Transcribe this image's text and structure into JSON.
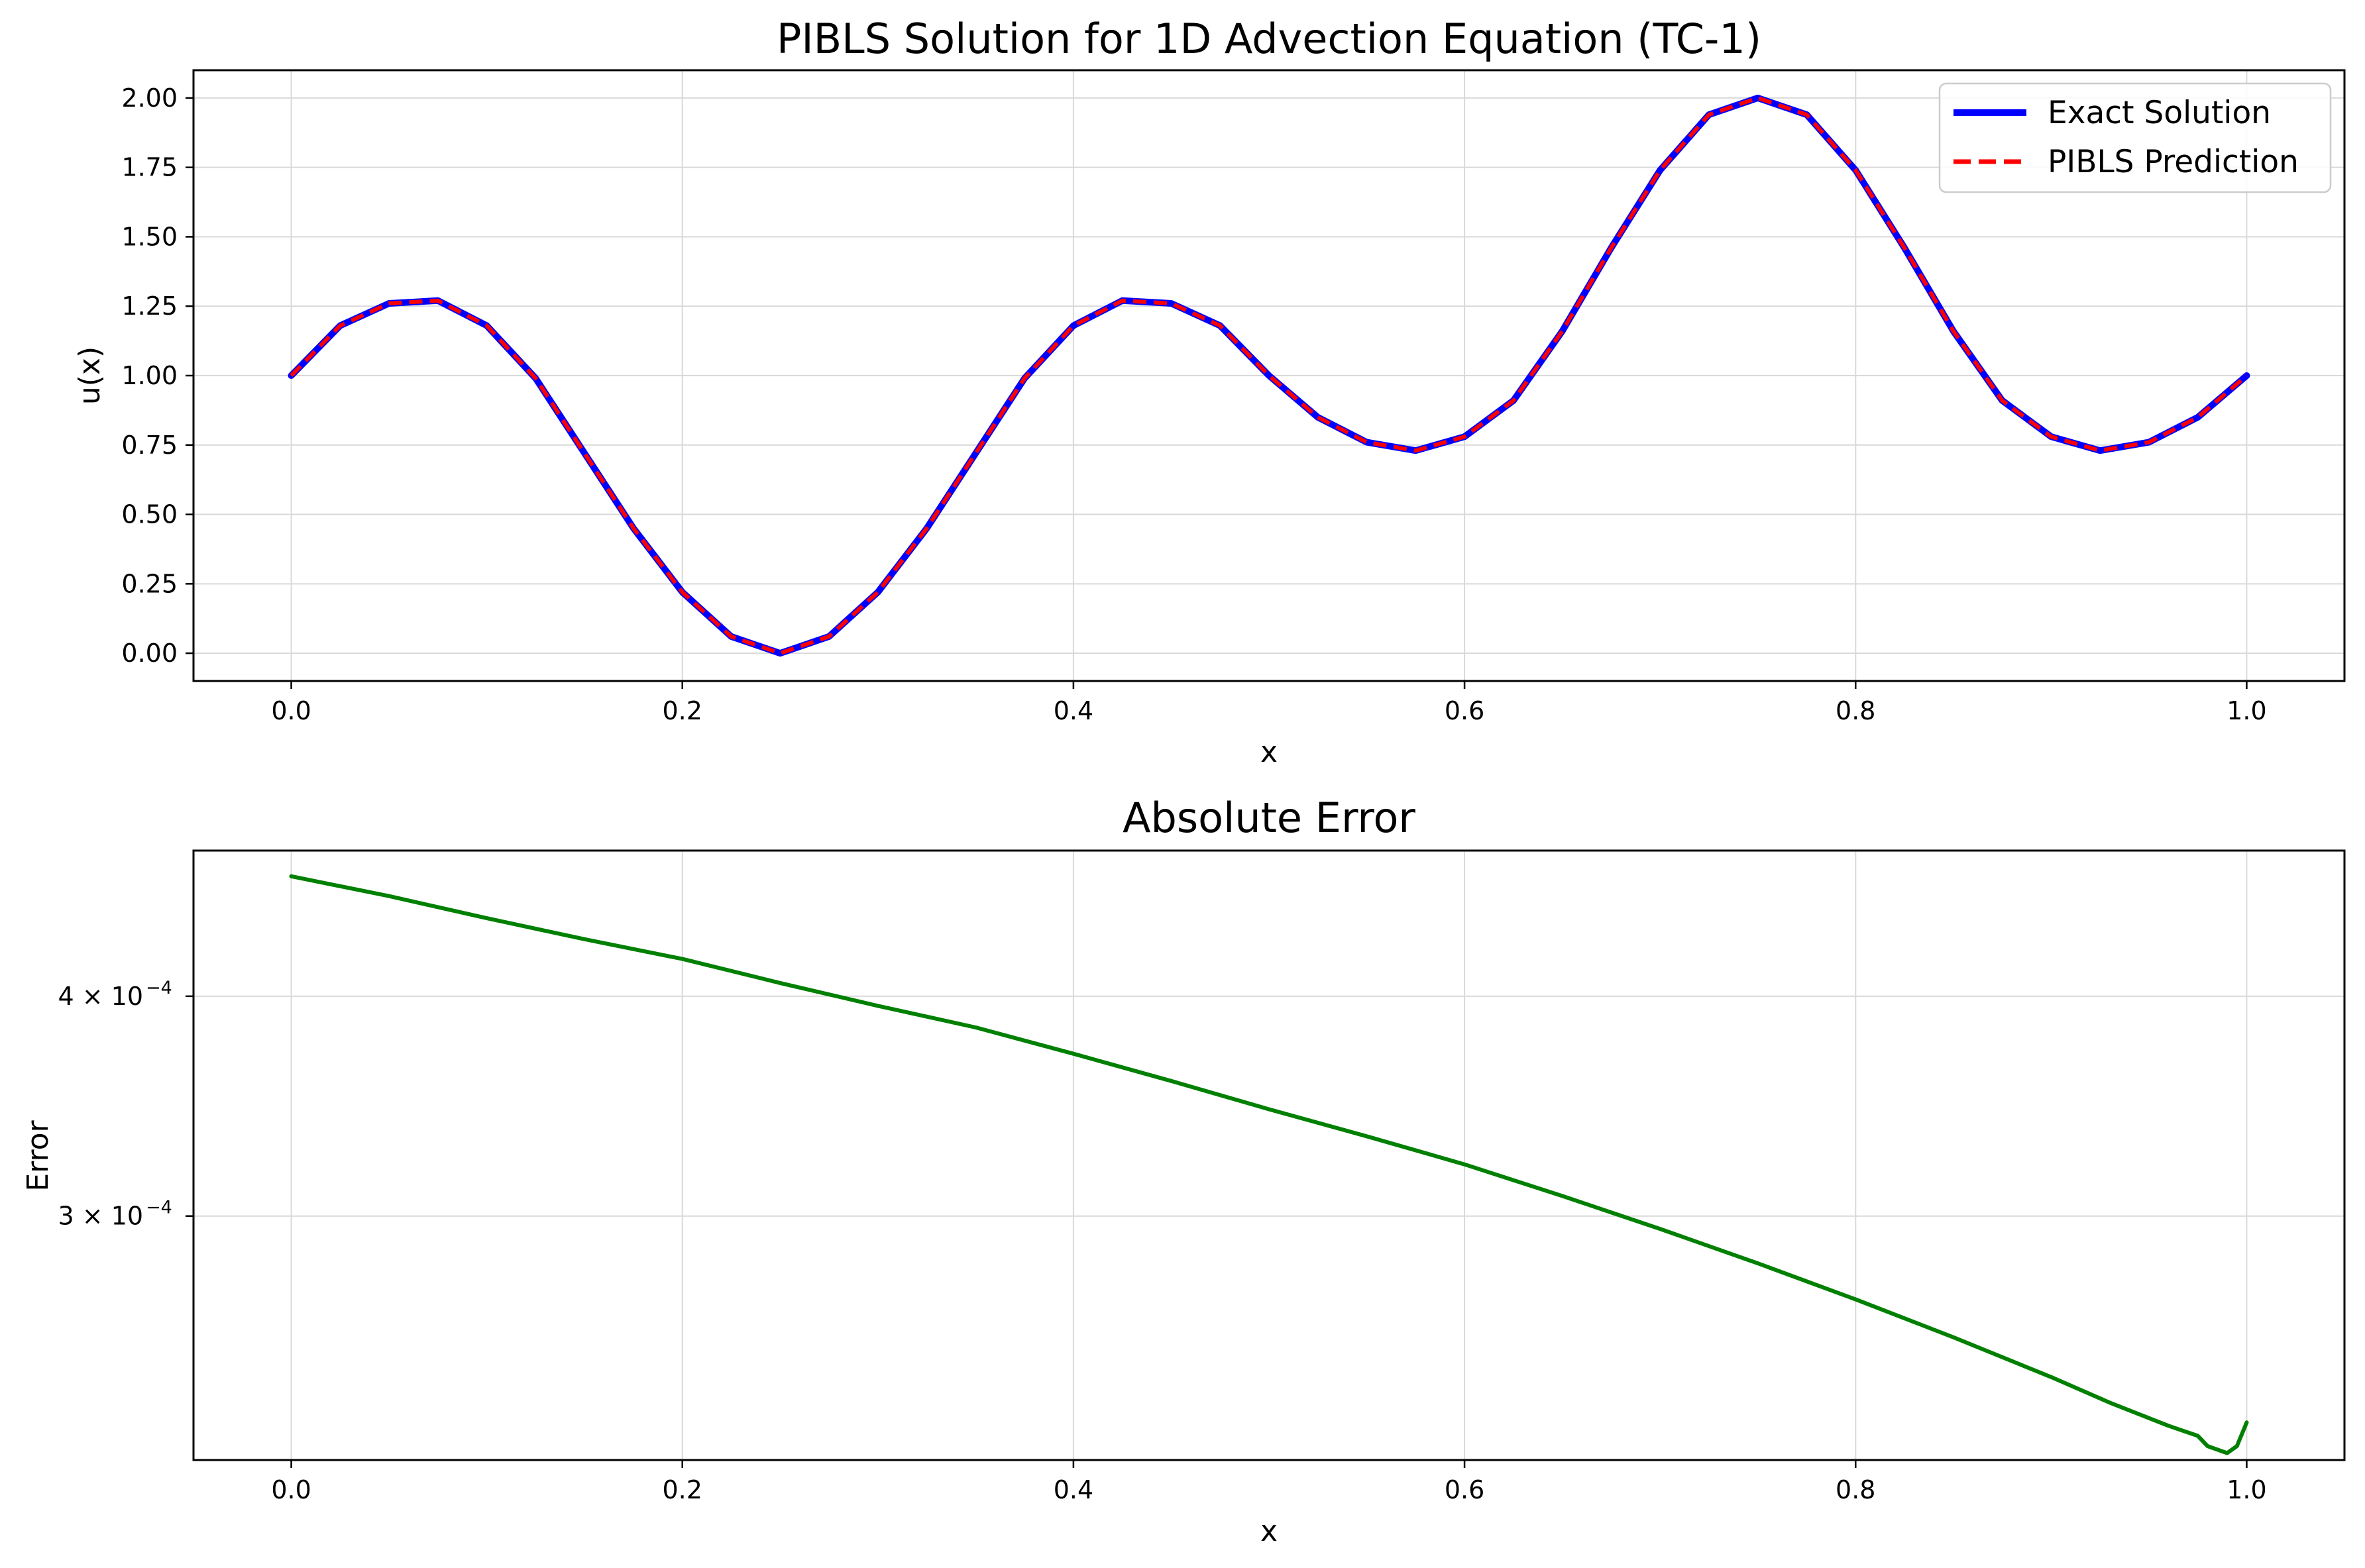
{
  "chart_data": [
    {
      "type": "line",
      "title": "PIBLS Solution for 1D Advection Equation (TC-1)",
      "xlabel": "x",
      "ylabel": "u(x)",
      "xlim": [
        -0.05,
        1.05
      ],
      "ylim": [
        -0.1,
        2.1
      ],
      "xticks": [
        0.0,
        0.2,
        0.4,
        0.6,
        0.8,
        1.0
      ],
      "xtick_labels": [
        "0.0",
        "0.2",
        "0.4",
        "0.6",
        "0.8",
        "1.0"
      ],
      "yticks": [
        0.0,
        0.25,
        0.5,
        0.75,
        1.0,
        1.25,
        1.5,
        1.75,
        2.0
      ],
      "ytick_labels": [
        "0.00",
        "0.25",
        "0.50",
        "0.75",
        "1.00",
        "1.25",
        "1.50",
        "1.75",
        "2.00"
      ],
      "grid": true,
      "legend_position": "top-right",
      "series": [
        {
          "name": "Exact Solution",
          "style": "solid",
          "color": "#0000ff",
          "x": [
            0.0,
            0.025,
            0.05,
            0.075,
            0.1,
            0.125,
            0.15,
            0.175,
            0.2,
            0.225,
            0.25,
            0.275,
            0.3,
            0.325,
            0.35,
            0.375,
            0.4,
            0.425,
            0.45,
            0.475,
            0.5,
            0.525,
            0.55,
            0.575,
            0.6,
            0.625,
            0.65,
            0.675,
            0.7,
            0.725,
            0.75,
            0.775,
            0.8,
            0.825,
            0.85,
            0.875,
            0.9,
            0.925,
            0.95,
            0.975,
            1.0
          ],
          "y": [
            1.0,
            1.18,
            1.26,
            1.27,
            1.18,
            0.99,
            0.72,
            0.45,
            0.22,
            0.06,
            0.0,
            0.06,
            0.22,
            0.45,
            0.72,
            0.99,
            1.18,
            1.27,
            1.26,
            1.18,
            1.0,
            0.85,
            0.76,
            0.73,
            0.78,
            0.91,
            1.16,
            1.46,
            1.74,
            1.94,
            2.0,
            1.94,
            1.74,
            1.46,
            1.16,
            0.91,
            0.78,
            0.73,
            0.76,
            0.85,
            1.0
          ]
        },
        {
          "name": "PIBLS Prediction",
          "style": "dashed",
          "color": "#ff0000",
          "x": [
            0.0,
            0.025,
            0.05,
            0.075,
            0.1,
            0.125,
            0.15,
            0.175,
            0.2,
            0.225,
            0.25,
            0.275,
            0.3,
            0.325,
            0.35,
            0.375,
            0.4,
            0.425,
            0.45,
            0.475,
            0.5,
            0.525,
            0.55,
            0.575,
            0.6,
            0.625,
            0.65,
            0.675,
            0.7,
            0.725,
            0.75,
            0.775,
            0.8,
            0.825,
            0.85,
            0.875,
            0.9,
            0.925,
            0.95,
            0.975,
            1.0
          ],
          "y": [
            1.0,
            1.18,
            1.26,
            1.27,
            1.18,
            0.99,
            0.72,
            0.45,
            0.22,
            0.06,
            0.0,
            0.06,
            0.22,
            0.45,
            0.72,
            0.99,
            1.18,
            1.27,
            1.26,
            1.18,
            1.0,
            0.85,
            0.76,
            0.73,
            0.78,
            0.91,
            1.16,
            1.46,
            1.74,
            1.94,
            2.0,
            1.94,
            1.74,
            1.46,
            1.16,
            0.91,
            0.78,
            0.73,
            0.76,
            0.85,
            1.0
          ]
        }
      ]
    },
    {
      "type": "line",
      "title": "Absolute Error",
      "xlabel": "x",
      "ylabel": "Error",
      "xlim": [
        -0.05,
        1.05
      ],
      "yscale": "log",
      "ylim": [
        0.000218,
        0.000484
      ],
      "xticks": [
        0.0,
        0.2,
        0.4,
        0.6,
        0.8,
        1.0
      ],
      "xtick_labels": [
        "0.0",
        "0.2",
        "0.4",
        "0.6",
        "0.8",
        "1.0"
      ],
      "yticks": [
        0.0003,
        0.0004
      ],
      "ytick_labels": [
        "3 × 10",
        "4 × 10"
      ],
      "ytick_exponent": "−4",
      "grid": true,
      "series": [
        {
          "color": "#008000",
          "style": "solid",
          "x": [
            0.0,
            0.05,
            0.1,
            0.15,
            0.2,
            0.25,
            0.3,
            0.35,
            0.4,
            0.45,
            0.5,
            0.55,
            0.6,
            0.65,
            0.7,
            0.75,
            0.8,
            0.85,
            0.9,
            0.93,
            0.96,
            0.975,
            0.98,
            0.99,
            0.995,
            1.0
          ],
          "y": [
            0.000468,
            0.000456,
            0.000443,
            0.000431,
            0.00042,
            0.000407,
            0.000395,
            0.000384,
            0.000371,
            0.000358,
            0.000345,
            0.000333,
            0.000321,
            0.000308,
            0.000295,
            0.000282,
            0.000269,
            0.000256,
            0.000243,
            0.000235,
            0.000228,
            0.000225,
            0.000222,
            0.00022,
            0.000222,
            0.000229
          ]
        }
      ]
    }
  ]
}
